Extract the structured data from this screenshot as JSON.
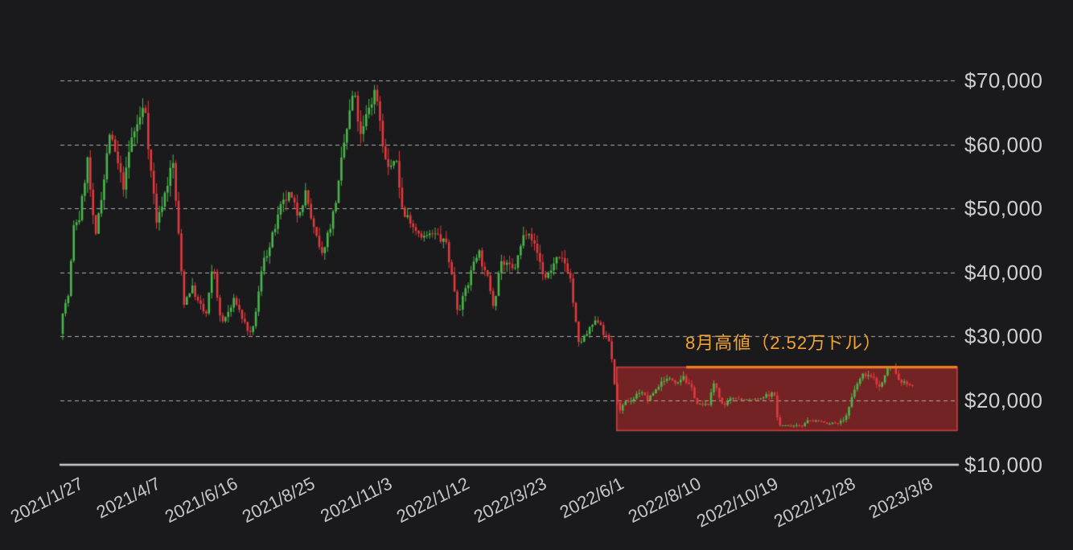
{
  "colors": {
    "background": "#1a1a1c",
    "candle_up": "#4bb64b",
    "candle_down": "#e13a3e",
    "grid": "#adadad",
    "axis": "#cdcdcd",
    "x_label": "#c6c6c6",
    "y_label": "#cfcfcf",
    "box_fill": "rgba(190,44,44,0.55)",
    "box_border": "rgba(224,72,72,0.85)",
    "resistance_line": "#ed7d1f",
    "annotation_text": "#f0a330"
  },
  "chart_data": {
    "type": "candlestick",
    "title": "",
    "grid": true,
    "legend": "none",
    "y_axis": {
      "range": [
        10000,
        73500
      ],
      "ticks": [
        {
          "label": "$70,000",
          "value": 70000
        },
        {
          "label": "$60,000",
          "value": 60000
        },
        {
          "label": "$50,000",
          "value": 50000
        },
        {
          "label": "$40,000",
          "value": 40000
        },
        {
          "label": "$30,000",
          "value": 30000
        },
        {
          "label": "$20,000",
          "value": 20000
        },
        {
          "label": "$10,000",
          "value": 10000
        }
      ]
    },
    "x_axis": {
      "interval_days": 70,
      "ticks": [
        "2021/1/27",
        "2021/4/7",
        "2021/6/16",
        "2021/8/25",
        "2021/11/3",
        "2022/1/12",
        "2022/3/23",
        "2022/6/1",
        "2022/8/10",
        "2022/10/19",
        "2022/12/28",
        "2023/3/8"
      ]
    },
    "annotation": {
      "text": "8月高値（2.52万ドル）"
    },
    "resistance_line": {
      "value": 25200,
      "start_date": "2022-08-15"
    },
    "highlight_box": {
      "start_date": "2022-06-13",
      "top_value": 25200,
      "bottom_value": 15300
    },
    "price_path": [
      [
        "2021-01-27",
        30400
      ],
      [
        "2021-01-29",
        34300
      ],
      [
        "2021-02-04",
        37000
      ],
      [
        "2021-02-08",
        46400
      ],
      [
        "2021-02-14",
        48600
      ],
      [
        "2021-02-21",
        57400
      ],
      [
        "2021-02-28",
        43200
      ],
      [
        "2021-03-13",
        61200
      ],
      [
        "2021-03-25",
        51400
      ],
      [
        "2021-04-02",
        59000
      ],
      [
        "2021-04-14",
        64600
      ],
      [
        "2021-04-25",
        47500
      ],
      [
        "2021-05-09",
        58200
      ],
      [
        "2021-05-19",
        34800
      ],
      [
        "2021-05-26",
        38300
      ],
      [
        "2021-06-08",
        32500
      ],
      [
        "2021-06-15",
        40100
      ],
      [
        "2021-06-22",
        31000
      ],
      [
        "2021-07-04",
        34700
      ],
      [
        "2021-07-20",
        29300
      ],
      [
        "2021-07-31",
        41500
      ],
      [
        "2021-08-13",
        47800
      ],
      [
        "2021-08-23",
        50300
      ],
      [
        "2021-08-31",
        47100
      ],
      [
        "2021-09-06",
        52700
      ],
      [
        "2021-09-21",
        40600
      ],
      [
        "2021-10-01",
        48200
      ],
      [
        "2021-10-20",
        66000
      ],
      [
        "2021-10-27",
        58500
      ],
      [
        "2021-11-09",
        67600
      ],
      [
        "2021-11-19",
        56900
      ],
      [
        "2021-11-28",
        57300
      ],
      [
        "2021-12-04",
        49300
      ],
      [
        "2021-12-16",
        47700
      ],
      [
        "2021-12-31",
        46200
      ],
      [
        "2022-01-12",
        43900
      ],
      [
        "2022-01-22",
        35000
      ],
      [
        "2022-02-01",
        38700
      ],
      [
        "2022-02-10",
        44600
      ],
      [
        "2022-02-24",
        35200
      ],
      [
        "2022-03-02",
        43900
      ],
      [
        "2022-03-14",
        39300
      ],
      [
        "2022-03-29",
        47800
      ],
      [
        "2022-04-11",
        39500
      ],
      [
        "2022-04-21",
        42200
      ],
      [
        "2022-05-04",
        39700
      ],
      [
        "2022-05-12",
        28200
      ],
      [
        "2022-05-31",
        31700
      ],
      [
        "2022-06-10",
        28400
      ],
      [
        "2022-06-13",
        22500
      ],
      [
        "2022-06-18",
        18000
      ],
      [
        "2022-06-30",
        19900
      ],
      [
        "2022-07-08",
        21600
      ],
      [
        "2022-07-13",
        19900
      ],
      [
        "2022-07-29",
        23800
      ],
      [
        "2022-08-08",
        23200
      ],
      [
        "2022-08-15",
        25000
      ],
      [
        "2022-08-28",
        19600
      ],
      [
        "2022-09-06",
        18800
      ],
      [
        "2022-09-12",
        22300
      ],
      [
        "2022-09-21",
        18700
      ],
      [
        "2022-10-04",
        20300
      ],
      [
        "2022-10-25",
        20100
      ],
      [
        "2022-11-05",
        21200
      ],
      [
        "2022-11-09",
        16000
      ],
      [
        "2022-11-21",
        15900
      ],
      [
        "2022-12-05",
        17000
      ],
      [
        "2022-12-30",
        16500
      ],
      [
        "2023-01-08",
        17100
      ],
      [
        "2023-01-14",
        19900
      ],
      [
        "2023-01-21",
        22700
      ],
      [
        "2023-01-29",
        23700
      ],
      [
        "2023-02-09",
        21800
      ],
      [
        "2023-02-16",
        24600
      ],
      [
        "2023-02-21",
        24800
      ],
      [
        "2023-02-25",
        23000
      ],
      [
        "2023-03-03",
        22400
      ],
      [
        "2023-03-08",
        22300
      ]
    ]
  }
}
